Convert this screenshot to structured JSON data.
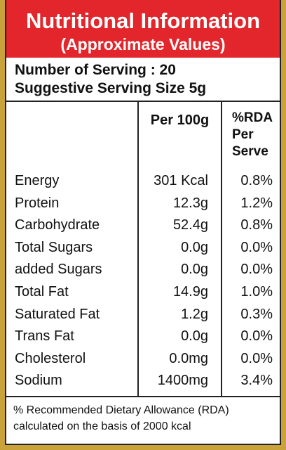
{
  "header": {
    "title": "Nutritional Information",
    "subtitle": "(Approximate Values)"
  },
  "serving": {
    "count": "Number of Serving : 20",
    "size": "Suggestive Serving Size 5g"
  },
  "table": {
    "columns": {
      "per_100g": "Per 100g",
      "rda": [
        "%RDA",
        "Per",
        "Serve"
      ]
    },
    "rows": [
      [
        "Energy",
        "301 Kcal",
        "0.8%"
      ],
      [
        "Protein",
        "12.3g",
        "1.2%"
      ],
      [
        "Carbohydrate",
        "52.4g",
        "0.8%"
      ],
      [
        "Total Sugars",
        "0.0g",
        "0.0%"
      ],
      [
        "added Sugars",
        "0.0g",
        "0.0%"
      ],
      [
        "Total Fat",
        "14.9g",
        "1.0%"
      ],
      [
        "Saturated Fat",
        "1.2g",
        "0.3%"
      ],
      [
        "Trans Fat",
        "0.0g",
        "0.0%"
      ],
      [
        "Cholesterol",
        "0.0mg",
        "0.0%"
      ],
      [
        "Sodium",
        "1400mg",
        "3.4%"
      ]
    ]
  },
  "footnote": [
    "% Recommended Dietary Allowance (RDA)",
    "calculated on the basis of 2000 kcal"
  ]
}
